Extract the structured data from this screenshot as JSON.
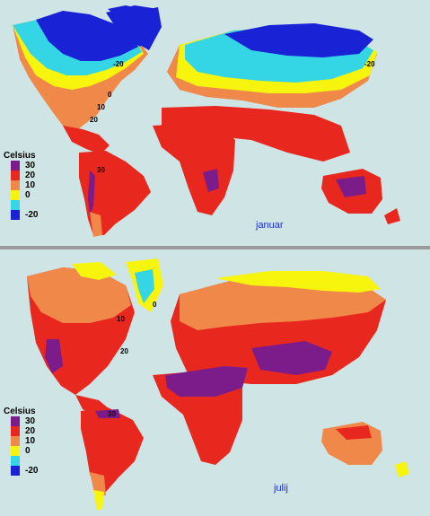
{
  "maps": [
    {
      "name": "januar",
      "label": "januar",
      "legend": {
        "title": "Celsius",
        "entries": [
          {
            "label": "30",
            "color": "#7b1c8a"
          },
          {
            "label": "20",
            "color": "#e8281e"
          },
          {
            "label": "10",
            "color": "#f0884a"
          },
          {
            "label": "0",
            "color": "#f7f50d"
          },
          {
            "label": "",
            "color": "#34d6e6"
          },
          {
            "label": "-20",
            "color": "#1a22d6"
          }
        ]
      },
      "isotherm_labels": [
        "-20",
        "0",
        "10",
        "20",
        "30"
      ]
    },
    {
      "name": "julij",
      "label": "julij",
      "legend": {
        "title": "Celsius",
        "entries": [
          {
            "label": "30",
            "color": "#7b1c8a"
          },
          {
            "label": "20",
            "color": "#e8281e"
          },
          {
            "label": "10",
            "color": "#f0884a"
          },
          {
            "label": "0",
            "color": "#f7f50d"
          },
          {
            "label": "",
            "color": "#34d6e6"
          },
          {
            "label": "-20",
            "color": "#1a22d6"
          }
        ]
      },
      "isotherm_labels": [
        "0",
        "10",
        "20",
        "30"
      ]
    }
  ]
}
